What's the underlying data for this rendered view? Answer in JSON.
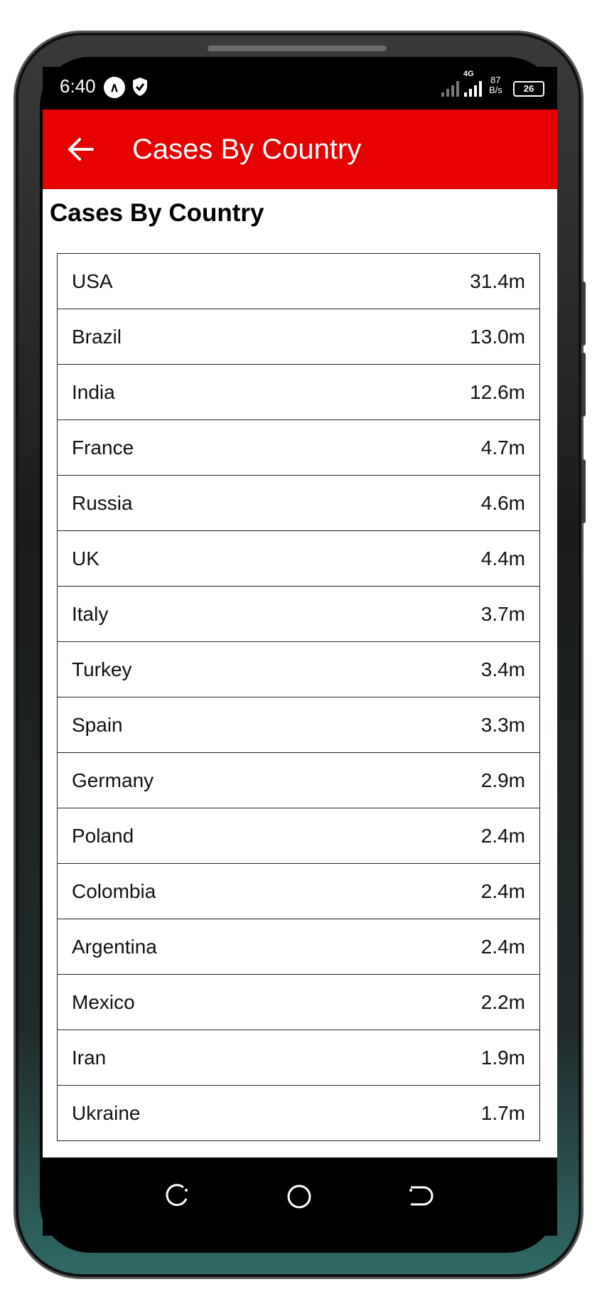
{
  "status_bar": {
    "time": "6:40",
    "network_type": "4G",
    "net_rate_value": "87",
    "net_rate_unit": "B/s",
    "battery": "26"
  },
  "app_bar": {
    "title": "Cases By Country",
    "back_icon": "arrow-left-icon",
    "background_color": "#e60000"
  },
  "page": {
    "heading": "Cases By Country"
  },
  "countries": [
    {
      "name": "USA",
      "cases": "31.4m"
    },
    {
      "name": "Brazil",
      "cases": "13.0m"
    },
    {
      "name": "India",
      "cases": "12.6m"
    },
    {
      "name": "France",
      "cases": "4.7m"
    },
    {
      "name": "Russia",
      "cases": "4.6m"
    },
    {
      "name": "UK",
      "cases": "4.4m"
    },
    {
      "name": "Italy",
      "cases": "3.7m"
    },
    {
      "name": "Turkey",
      "cases": "3.4m"
    },
    {
      "name": "Spain",
      "cases": "3.3m"
    },
    {
      "name": "Germany",
      "cases": "2.9m"
    },
    {
      "name": "Poland",
      "cases": "2.4m"
    },
    {
      "name": "Colombia",
      "cases": "2.4m"
    },
    {
      "name": "Argentina",
      "cases": "2.4m"
    },
    {
      "name": "Mexico",
      "cases": "2.2m"
    },
    {
      "name": "Iran",
      "cases": "1.9m"
    },
    {
      "name": "Ukraine",
      "cases": "1.7m"
    }
  ],
  "nav_bar": {
    "buttons": [
      "recents-icon",
      "home-icon",
      "back-icon"
    ]
  }
}
